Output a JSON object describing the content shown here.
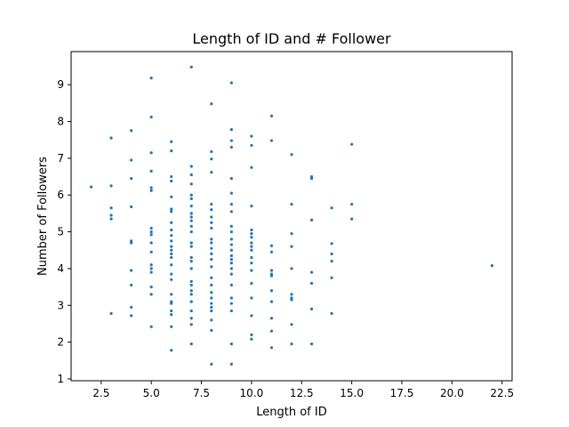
{
  "chart_data": {
    "type": "scatter",
    "title": "Length of ID and # Follower",
    "xlabel": "Length of ID",
    "ylabel": "Number of Followers",
    "xlim": [
      1.0,
      23.0
    ],
    "ylim": [
      0.95,
      9.9
    ],
    "xticks": [
      2.5,
      5.0,
      7.5,
      10.0,
      12.5,
      15.0,
      17.5,
      20.0,
      22.5
    ],
    "xtick_labels": [
      "2.5",
      "5.0",
      "7.5",
      "10.0",
      "12.5",
      "15.0",
      "17.5",
      "20.0",
      "22.5"
    ],
    "yticks": [
      1,
      2,
      3,
      4,
      5,
      6,
      7,
      8,
      9
    ],
    "ytick_labels": [
      "1",
      "2",
      "3",
      "4",
      "5",
      "6",
      "7",
      "8",
      "9"
    ],
    "marker_color": "#1f77b4",
    "grid": false,
    "points": [
      [
        2,
        6.22
      ],
      [
        3,
        7.55
      ],
      [
        3,
        6.25
      ],
      [
        3,
        5.65
      ],
      [
        3,
        5.45
      ],
      [
        3,
        5.35
      ],
      [
        3,
        2.78
      ],
      [
        4,
        7.75
      ],
      [
        4,
        6.95
      ],
      [
        4,
        6.45
      ],
      [
        4,
        5.68
      ],
      [
        4,
        4.75
      ],
      [
        4,
        4.7
      ],
      [
        4,
        3.95
      ],
      [
        4,
        3.55
      ],
      [
        4,
        2.95
      ],
      [
        4,
        2.72
      ],
      [
        5,
        9.18
      ],
      [
        5,
        8.12
      ],
      [
        5,
        7.15
      ],
      [
        5,
        6.65
      ],
      [
        5,
        6.2
      ],
      [
        5,
        6.12
      ],
      [
        5,
        5.1
      ],
      [
        5,
        5.0
      ],
      [
        5,
        4.92
      ],
      [
        5,
        4.7
      ],
      [
        5,
        4.45
      ],
      [
        5,
        4.1
      ],
      [
        5,
        4.0
      ],
      [
        5,
        3.9
      ],
      [
        5,
        3.5
      ],
      [
        5,
        3.3
      ],
      [
        5,
        2.42
      ],
      [
        6,
        7.45
      ],
      [
        6,
        7.2
      ],
      [
        6,
        6.5
      ],
      [
        6,
        6.38
      ],
      [
        6,
        5.95
      ],
      [
        6,
        5.62
      ],
      [
        6,
        5.55
      ],
      [
        6,
        5.25
      ],
      [
        6,
        5.05
      ],
      [
        6,
        4.9
      ],
      [
        6,
        4.75
      ],
      [
        6,
        4.6
      ],
      [
        6,
        4.5
      ],
      [
        6,
        4.4
      ],
      [
        6,
        4.3
      ],
      [
        6,
        4.1
      ],
      [
        6,
        3.85
      ],
      [
        6,
        3.7
      ],
      [
        6,
        3.3
      ],
      [
        6,
        3.1
      ],
      [
        6,
        3.05
      ],
      [
        6,
        2.85
      ],
      [
        6,
        2.75
      ],
      [
        6,
        2.42
      ],
      [
        6,
        1.78
      ],
      [
        7,
        9.48
      ],
      [
        7,
        6.78
      ],
      [
        7,
        6.55
      ],
      [
        7,
        6.3
      ],
      [
        7,
        6.0
      ],
      [
        7,
        5.9
      ],
      [
        7,
        5.7
      ],
      [
        7,
        5.5
      ],
      [
        7,
        5.4
      ],
      [
        7,
        5.3
      ],
      [
        7,
        5.15
      ],
      [
        7,
        5.0
      ],
      [
        7,
        4.7
      ],
      [
        7,
        4.6
      ],
      [
        7,
        4.3
      ],
      [
        7,
        4.2
      ],
      [
        7,
        4.0
      ],
      [
        7,
        3.65
      ],
      [
        7,
        3.55
      ],
      [
        7,
        3.4
      ],
      [
        7,
        3.3
      ],
      [
        7,
        3.1
      ],
      [
        7,
        2.85
      ],
      [
        7,
        2.65
      ],
      [
        7,
        2.48
      ],
      [
        7,
        1.95
      ],
      [
        8,
        8.48
      ],
      [
        8,
        7.18
      ],
      [
        8,
        6.98
      ],
      [
        8,
        6.62
      ],
      [
        8,
        5.75
      ],
      [
        8,
        5.6
      ],
      [
        8,
        5.4
      ],
      [
        8,
        5.25
      ],
      [
        8,
        5.1
      ],
      [
        8,
        4.8
      ],
      [
        8,
        4.7
      ],
      [
        8,
        4.55
      ],
      [
        8,
        4.4
      ],
      [
        8,
        4.25
      ],
      [
        8,
        4.05
      ],
      [
        8,
        3.75
      ],
      [
        8,
        3.55
      ],
      [
        8,
        3.35
      ],
      [
        8,
        3.2
      ],
      [
        8,
        3.05
      ],
      [
        8,
        2.95
      ],
      [
        8,
        2.85
      ],
      [
        8,
        2.6
      ],
      [
        8,
        2.32
      ],
      [
        8,
        1.4
      ],
      [
        9,
        9.05
      ],
      [
        9,
        7.78
      ],
      [
        9,
        7.48
      ],
      [
        9,
        7.3
      ],
      [
        9,
        6.45
      ],
      [
        9,
        6.05
      ],
      [
        9,
        5.75
      ],
      [
        9,
        5.55
      ],
      [
        9,
        5.15
      ],
      [
        9,
        5.0
      ],
      [
        9,
        4.8
      ],
      [
        9,
        4.65
      ],
      [
        9,
        4.5
      ],
      [
        9,
        4.35
      ],
      [
        9,
        4.25
      ],
      [
        9,
        4.15
      ],
      [
        9,
        4.0
      ],
      [
        9,
        3.85
      ],
      [
        9,
        3.55
      ],
      [
        9,
        3.2
      ],
      [
        9,
        3.05
      ],
      [
        9,
        2.85
      ],
      [
        9,
        1.95
      ],
      [
        9,
        1.4
      ],
      [
        10,
        7.6
      ],
      [
        10,
        7.35
      ],
      [
        10,
        6.75
      ],
      [
        10,
        5.7
      ],
      [
        10,
        5.05
      ],
      [
        10,
        4.95
      ],
      [
        10,
        4.85
      ],
      [
        10,
        4.7
      ],
      [
        10,
        4.6
      ],
      [
        10,
        4.5
      ],
      [
        10,
        4.3
      ],
      [
        10,
        4.15
      ],
      [
        10,
        3.95
      ],
      [
        10,
        3.6
      ],
      [
        10,
        3.2
      ],
      [
        10,
        2.72
      ],
      [
        10,
        2.2
      ],
      [
        10,
        2.08
      ],
      [
        11,
        8.15
      ],
      [
        11,
        7.48
      ],
      [
        11,
        4.62
      ],
      [
        11,
        4.45
      ],
      [
        11,
        3.95
      ],
      [
        11,
        3.85
      ],
      [
        11,
        3.8
      ],
      [
        11,
        3.4
      ],
      [
        11,
        3.1
      ],
      [
        11,
        2.65
      ],
      [
        11,
        2.3
      ],
      [
        11,
        1.85
      ],
      [
        12,
        7.1
      ],
      [
        12,
        5.75
      ],
      [
        12,
        4.95
      ],
      [
        12,
        4.6
      ],
      [
        12,
        4.0
      ],
      [
        12,
        3.3
      ],
      [
        12,
        3.2
      ],
      [
        12,
        3.15
      ],
      [
        12,
        2.48
      ],
      [
        12,
        1.95
      ],
      [
        13,
        6.5
      ],
      [
        13,
        6.45
      ],
      [
        13,
        5.32
      ],
      [
        13,
        3.9
      ],
      [
        13,
        3.6
      ],
      [
        13,
        2.9
      ],
      [
        13,
        1.95
      ],
      [
        14,
        5.65
      ],
      [
        14,
        4.68
      ],
      [
        14,
        4.4
      ],
      [
        14,
        4.2
      ],
      [
        14,
        3.75
      ],
      [
        14,
        2.78
      ],
      [
        15,
        7.38
      ],
      [
        15,
        5.75
      ],
      [
        15,
        5.35
      ],
      [
        22,
        4.08
      ]
    ]
  }
}
